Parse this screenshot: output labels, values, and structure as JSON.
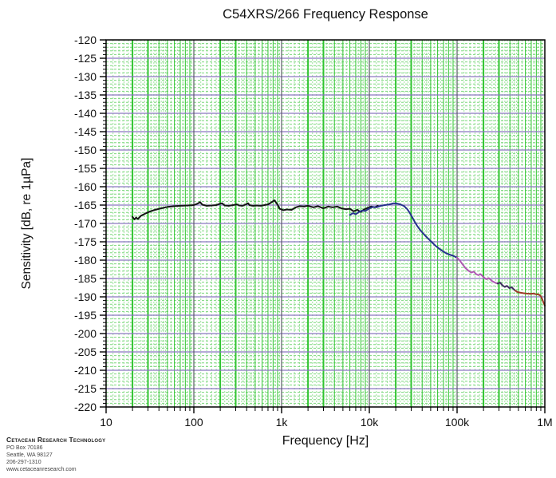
{
  "title": "C54XRS/266 Frequency Response",
  "footer": {
    "company": "Cetacean Research Technology",
    "po_box": "PO Box 70186",
    "city": "Seattle, WA  98127",
    "phone": "206-297-1310",
    "website": "www.cetaceanresearch.com"
  },
  "colors": {
    "background": "#ffffff",
    "frame": "#000000",
    "minor_grid_green": "#7cd87c",
    "subminor_grid_green": "#9fe29f",
    "minor_vertical_green": "#2fc42f",
    "major_horizontal_purple": "#8a78c0",
    "major_vertical_gray": "#5a5a66",
    "curve_black": "#141414",
    "curve_navy": "#26318c",
    "curve_magenta": "#b05ab4",
    "curve_dark_violet": "#403060",
    "curve_red_brown": "#9c3a28"
  },
  "chart_data": {
    "type": "line",
    "title": "C54XRS/266 Frequency Response",
    "xlabel": "Frequency [Hz]",
    "ylabel": "Sensitivity [dB, re 1µPa]",
    "x_scale": "log",
    "xlim": [
      10,
      1000000
    ],
    "ylim": [
      -220,
      -120
    ],
    "y_major_step": 5,
    "y_minor_step": 1,
    "grid": "on",
    "legend": "none",
    "x_tick_labels": [
      "10",
      "100",
      "1k",
      "10k",
      "100k",
      "1M"
    ],
    "x_tick_values": [
      10,
      100,
      1000,
      10000,
      100000,
      1000000
    ],
    "series": [
      {
        "name": "low-frequency-sweep",
        "color": "#141414",
        "points": [
          [
            20,
            -168.2
          ],
          [
            21,
            -168.9
          ],
          [
            22,
            -168.4
          ],
          [
            23,
            -168.8
          ],
          [
            25,
            -167.9
          ],
          [
            28,
            -167.3
          ],
          [
            32,
            -166.7
          ],
          [
            36,
            -166.3
          ],
          [
            42,
            -165.9
          ],
          [
            50,
            -165.5
          ],
          [
            60,
            -165.3
          ],
          [
            70,
            -165.2
          ],
          [
            85,
            -165.1
          ],
          [
            100,
            -165.0
          ],
          [
            110,
            -164.6
          ],
          [
            118,
            -164.2
          ],
          [
            125,
            -164.9
          ],
          [
            140,
            -165.2
          ],
          [
            160,
            -165.1
          ],
          [
            180,
            -165.0
          ],
          [
            200,
            -164.6
          ],
          [
            210,
            -164.5
          ],
          [
            225,
            -165.1
          ],
          [
            250,
            -165.2
          ],
          [
            280,
            -165.0
          ],
          [
            310,
            -164.8
          ],
          [
            330,
            -165.1
          ],
          [
            360,
            -165.2
          ],
          [
            400,
            -164.7
          ],
          [
            415,
            -164.5
          ],
          [
            430,
            -165.0
          ],
          [
            470,
            -165.2
          ],
          [
            520,
            -165.1
          ],
          [
            580,
            -165.2
          ],
          [
            640,
            -165.0
          ],
          [
            700,
            -164.8
          ],
          [
            760,
            -164.3
          ],
          [
            830,
            -163.7
          ],
          [
            900,
            -164.9
          ],
          [
            950,
            -166.0
          ],
          [
            1050,
            -166.4
          ],
          [
            1150,
            -166.2
          ],
          [
            1300,
            -166.3
          ],
          [
            1450,
            -165.6
          ],
          [
            1600,
            -165.3
          ],
          [
            1800,
            -165.4
          ],
          [
            2000,
            -165.2
          ],
          [
            2300,
            -165.6
          ],
          [
            2600,
            -165.3
          ],
          [
            3000,
            -165.9
          ],
          [
            3400,
            -165.4
          ],
          [
            3800,
            -165.6
          ],
          [
            4300,
            -165.4
          ],
          [
            4800,
            -165.9
          ],
          [
            5400,
            -166.1
          ],
          [
            6000,
            -166.0
          ],
          [
            6600,
            -166.7
          ],
          [
            7300,
            -166.3
          ],
          [
            8000,
            -166.9
          ],
          [
            8700,
            -166.2
          ],
          [
            9500,
            -165.8
          ],
          [
            10500,
            -165.4
          ],
          [
            11500,
            -165.6
          ],
          [
            12500,
            -165.2
          ]
        ]
      },
      {
        "name": "mid-frequency-sweep",
        "color": "#26318c",
        "points": [
          [
            6000,
            -167.7
          ],
          [
            6500,
            -167.2
          ],
          [
            7000,
            -167.5
          ],
          [
            7600,
            -166.9
          ],
          [
            8300,
            -166.5
          ],
          [
            9000,
            -166.6
          ],
          [
            10000,
            -165.9
          ],
          [
            11000,
            -165.5
          ],
          [
            12000,
            -165.6
          ],
          [
            13500,
            -165.2
          ],
          [
            15000,
            -165.0
          ],
          [
            17000,
            -164.8
          ],
          [
            19000,
            -164.5
          ],
          [
            21000,
            -164.6
          ],
          [
            23000,
            -164.9
          ],
          [
            25000,
            -165.3
          ],
          [
            27000,
            -166.1
          ],
          [
            29000,
            -167.2
          ],
          [
            31000,
            -168.4
          ],
          [
            33000,
            -169.6
          ],
          [
            35000,
            -170.6
          ],
          [
            38000,
            -171.8
          ],
          [
            41000,
            -172.7
          ],
          [
            44000,
            -173.5
          ],
          [
            48000,
            -174.4
          ],
          [
            52000,
            -175.2
          ],
          [
            57000,
            -176.1
          ],
          [
            62000,
            -176.8
          ],
          [
            68000,
            -177.5
          ],
          [
            75000,
            -178.1
          ],
          [
            82000,
            -178.5
          ],
          [
            90000,
            -178.8
          ],
          [
            100000,
            -179.3
          ]
        ]
      },
      {
        "name": "high-frequency-sweep-magenta",
        "color": "#b05ab4",
        "points": [
          [
            100000,
            -179.3
          ],
          [
            108000,
            -180.2
          ],
          [
            116000,
            -181.2
          ],
          [
            125000,
            -182.2
          ],
          [
            135000,
            -182.9
          ],
          [
            145000,
            -183.4
          ],
          [
            155000,
            -183.1
          ],
          [
            165000,
            -183.8
          ],
          [
            175000,
            -184.1
          ],
          [
            185000,
            -183.8
          ],
          [
            200000,
            -184.6
          ],
          [
            215000,
            -185.2
          ],
          [
            230000,
            -184.9
          ],
          [
            250000,
            -185.7
          ],
          [
            270000,
            -186.1
          ],
          [
            290000,
            -186.4
          ]
        ]
      },
      {
        "name": "high-frequency-sweep-dark",
        "color": "#403060",
        "points": [
          [
            290000,
            -186.4
          ],
          [
            310000,
            -186.1
          ],
          [
            330000,
            -186.9
          ],
          [
            350000,
            -187.3
          ],
          [
            370000,
            -187.0
          ],
          [
            395000,
            -187.6
          ],
          [
            420000,
            -187.4
          ],
          [
            445000,
            -188.0
          ],
          [
            460000,
            -188.3
          ]
        ]
      },
      {
        "name": "very-high-frequency-sweep-red",
        "color": "#9c3a28",
        "points": [
          [
            460000,
            -188.3
          ],
          [
            490000,
            -188.7
          ],
          [
            530000,
            -188.9
          ],
          [
            570000,
            -189.0
          ],
          [
            620000,
            -189.1
          ],
          [
            680000,
            -189.2
          ],
          [
            740000,
            -189.1
          ],
          [
            800000,
            -189.3
          ],
          [
            860000,
            -189.4
          ],
          [
            900000,
            -189.8
          ],
          [
            940000,
            -190.8
          ],
          [
            970000,
            -191.6
          ],
          [
            1000000,
            -192.4
          ]
        ]
      }
    ]
  }
}
